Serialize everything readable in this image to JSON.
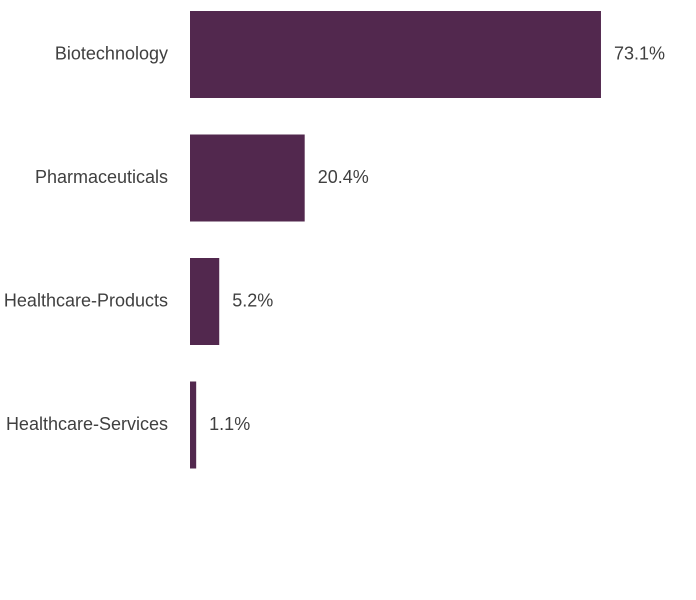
{
  "chart_data": {
    "type": "barh",
    "categories": [
      "Biotechnology",
      "Pharmaceuticals",
      "Healthcare-Products",
      "Healthcare-Services"
    ],
    "values": [
      73.1,
      20.4,
      5.2,
      1.1
    ],
    "value_labels": [
      "73.1%",
      "20.4%",
      "5.2%",
      "1.1%"
    ],
    "color": "#52284e"
  }
}
